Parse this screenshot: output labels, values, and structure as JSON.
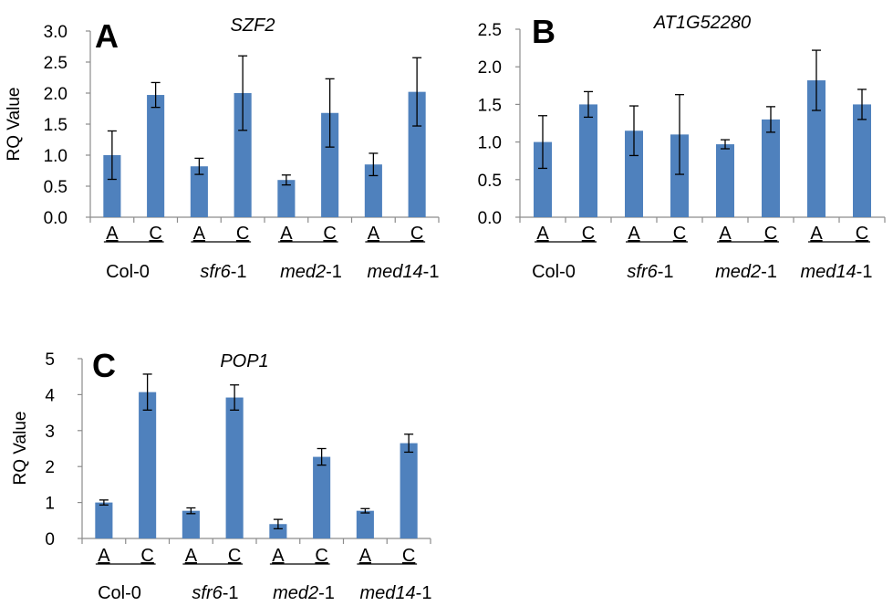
{
  "chart_data": [
    {
      "type": "bar",
      "panel_label": "A",
      "title": "SZF2",
      "ylabel": "RQ Value",
      "ylim": [
        0,
        3.0
      ],
      "yticks": [
        "0.0",
        "0.5",
        "1.0",
        "1.5",
        "2.0",
        "2.5",
        "3.0"
      ],
      "categories": [
        "A",
        "C",
        "A",
        "C",
        "A",
        "C",
        "A",
        "C"
      ],
      "groups": [
        {
          "name": "Col-0",
          "italic": "",
          "suffix": ""
        },
        {
          "name": "",
          "italic": "sfr6",
          "suffix": "-1"
        },
        {
          "name": "",
          "italic": "med2",
          "suffix": "-1"
        },
        {
          "name": "",
          "italic": "med14",
          "suffix": "-1"
        }
      ],
      "values": [
        1.0,
        1.97,
        0.82,
        2.0,
        0.6,
        1.68,
        0.85,
        2.02
      ],
      "errors": [
        0.39,
        0.2,
        0.13,
        0.6,
        0.08,
        0.55,
        0.18,
        0.55
      ],
      "color": "#4f81bd"
    },
    {
      "type": "bar",
      "panel_label": "B",
      "title": "AT1G52280",
      "ylabel": "",
      "ylim": [
        0,
        2.5
      ],
      "yticks": [
        "0.0",
        "0.5",
        "1.0",
        "1.5",
        "2.0",
        "2.5"
      ],
      "categories": [
        "A",
        "C",
        "A",
        "C",
        "A",
        "C",
        "A",
        "C"
      ],
      "groups": [
        {
          "name": "Col-0",
          "italic": "",
          "suffix": ""
        },
        {
          "name": "",
          "italic": "sfr6",
          "suffix": "-1"
        },
        {
          "name": "",
          "italic": "med2",
          "suffix": "-1"
        },
        {
          "name": "",
          "italic": "med14",
          "suffix": "-1"
        }
      ],
      "values": [
        1.0,
        1.5,
        1.15,
        1.1,
        0.97,
        1.3,
        1.82,
        1.5
      ],
      "errors": [
        0.35,
        0.17,
        0.33,
        0.53,
        0.06,
        0.17,
        0.4,
        0.2
      ],
      "color": "#4f81bd"
    },
    {
      "type": "bar",
      "panel_label": "C",
      "title": "POP1",
      "ylabel": "RQ Value",
      "ylim": [
        0,
        5
      ],
      "yticks": [
        "0",
        "1",
        "2",
        "3",
        "4",
        "5"
      ],
      "categories": [
        "A",
        "C",
        "A",
        "C",
        "A",
        "C",
        "A",
        "C"
      ],
      "groups": [
        {
          "name": "Col-0",
          "italic": "",
          "suffix": ""
        },
        {
          "name": "",
          "italic": "sfr6",
          "suffix": "-1"
        },
        {
          "name": "",
          "italic": "med2",
          "suffix": "-1"
        },
        {
          "name": "",
          "italic": "med14",
          "suffix": "-1"
        }
      ],
      "values": [
        1.0,
        4.07,
        0.77,
        3.92,
        0.4,
        2.27,
        0.77,
        2.65
      ],
      "errors": [
        0.07,
        0.5,
        0.08,
        0.35,
        0.13,
        0.23,
        0.06,
        0.25
      ],
      "color": "#4f81bd"
    }
  ]
}
